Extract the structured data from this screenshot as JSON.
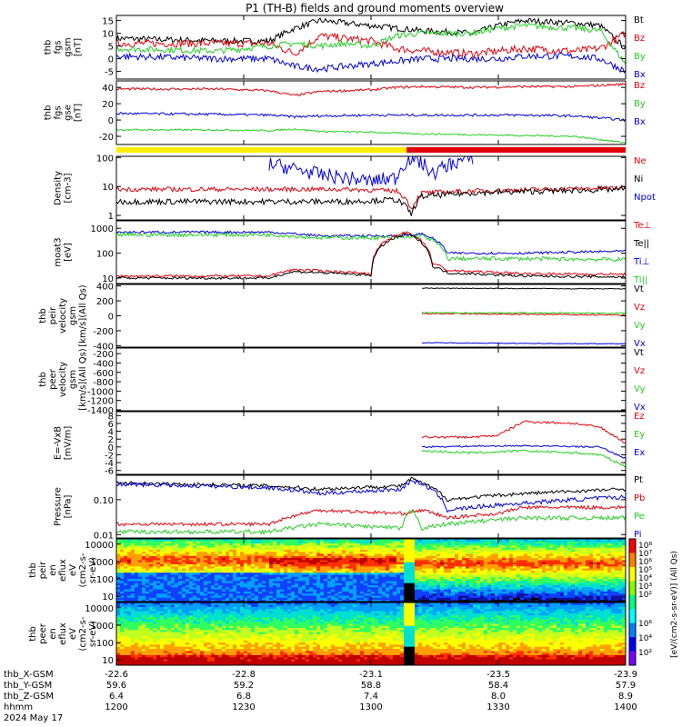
{
  "title": "P1 (TH-B) fields and ground moments overview",
  "colors": {
    "black": "#000000",
    "red": "#e8000b",
    "green": "#22d022",
    "blue": "#0000e0",
    "yellow": "#ffee00",
    "barred": "#e00000"
  },
  "chart_data": [
    {
      "type": "line",
      "id": "fgs",
      "ylabel_lines": [
        "thb",
        "fgs",
        "gsm",
        "[nT]"
      ],
      "ylim": [
        -8,
        17
      ],
      "ticks": [
        "15",
        "10",
        "5",
        "0",
        "-5"
      ],
      "tick_values": [
        15,
        10,
        5,
        0,
        -5
      ],
      "legend": [
        {
          "label": "Bt",
          "color": "black"
        },
        {
          "label": "Bz",
          "color": "red"
        },
        {
          "label": "By",
          "color": "green"
        },
        {
          "label": "Bx",
          "color": "blue"
        }
      ],
      "series": [
        {
          "name": "Bt",
          "color": "black",
          "t": [
            0,
            0.2,
            0.3,
            0.35,
            0.4,
            0.45,
            0.5,
            0.55,
            0.6,
            0.7,
            0.75,
            0.8,
            0.9,
            0.95,
            1
          ],
          "values": [
            8,
            7,
            7,
            12,
            15,
            14,
            13,
            12,
            11,
            10,
            13,
            15,
            14,
            13,
            4
          ],
          "noise": 1.2
        },
        {
          "name": "Bz",
          "color": "red",
          "t": [
            0,
            0.2,
            0.3,
            0.35,
            0.4,
            0.45,
            0.5,
            0.55,
            0.6,
            0.7,
            0.75,
            0.8,
            0.9,
            0.95,
            1
          ],
          "values": [
            6,
            6,
            6,
            2,
            9,
            8,
            7,
            4,
            3,
            2,
            3,
            4,
            3,
            4,
            10
          ],
          "noise": 1.5
        },
        {
          "name": "By",
          "color": "green",
          "t": [
            0,
            0.2,
            0.3,
            0.35,
            0.4,
            0.45,
            0.5,
            0.55,
            0.6,
            0.7,
            0.75,
            0.8,
            0.9,
            0.95,
            1
          ],
          "values": [
            4,
            3,
            5,
            6,
            5,
            6,
            5,
            9,
            10,
            10,
            12,
            13,
            12,
            11,
            -2
          ],
          "noise": 1.2
        },
        {
          "name": "Bx",
          "color": "blue",
          "t": [
            0,
            0.2,
            0.3,
            0.35,
            0.4,
            0.45,
            0.5,
            0.55,
            0.6,
            0.7,
            0.75,
            0.8,
            0.9,
            0.95,
            1
          ],
          "values": [
            1,
            0,
            0,
            -3,
            -4,
            -3,
            -2,
            -1,
            0,
            0,
            0,
            1,
            1,
            0,
            -5
          ],
          "noise": 1.3
        }
      ]
    },
    {
      "type": "line",
      "id": "fgs_gse",
      "ylabel_lines": [
        "thb",
        "fgs",
        "gse",
        "[nT]"
      ],
      "ylim": [
        -30,
        48
      ],
      "ticks": [
        "40",
        "20",
        "0",
        "-20"
      ],
      "tick_values": [
        40,
        20,
        0,
        -20
      ],
      "legend": [
        {
          "label": "Bz",
          "color": "red"
        },
        {
          "label": "By",
          "color": "green"
        },
        {
          "label": "Bx",
          "color": "blue"
        }
      ],
      "series": [
        {
          "name": "Bz",
          "color": "red",
          "t": [
            0,
            0.2,
            0.3,
            0.35,
            0.4,
            0.5,
            0.55,
            0.6,
            0.7,
            0.8,
            0.9,
            1
          ],
          "values": [
            38,
            38,
            36,
            30,
            35,
            37,
            40,
            41,
            40,
            41,
            41,
            44
          ],
          "noise": 1.5
        },
        {
          "name": "By",
          "color": "green",
          "t": [
            0,
            0.2,
            0.3,
            0.35,
            0.4,
            0.5,
            0.55,
            0.6,
            0.7,
            0.8,
            0.9,
            1
          ],
          "values": [
            -12,
            -12,
            -13,
            -11,
            -14,
            -15,
            -16,
            -17,
            -18,
            -19,
            -20,
            -28
          ],
          "noise": 1
        },
        {
          "name": "Bx",
          "color": "blue",
          "t": [
            0,
            0.2,
            0.3,
            0.35,
            0.4,
            0.5,
            0.55,
            0.6,
            0.7,
            0.8,
            0.9,
            1
          ],
          "values": [
            8,
            7,
            6,
            4,
            5,
            6,
            6,
            6,
            6,
            6,
            5,
            0
          ],
          "noise": 1.5
        }
      ]
    },
    {
      "type": "line",
      "id": "density",
      "ylabel_lines": [
        "Density",
        "[cm-3]"
      ],
      "log": true,
      "ylim": [
        0.7,
        110
      ],
      "ticks": [
        "100",
        "10",
        "1"
      ],
      "tick_values": [
        100,
        10,
        1
      ],
      "legend": [
        {
          "label": "Ne",
          "color": "red"
        },
        {
          "label": "Ni",
          "color": "black"
        },
        {
          "label": "Npot",
          "color": "blue"
        }
      ],
      "series": [
        {
          "name": "Ne",
          "color": "red",
          "t": [
            0,
            0.35,
            0.45,
            0.55,
            0.58,
            0.6,
            0.7,
            0.85,
            1
          ],
          "values": [
            8,
            8,
            8,
            7,
            1.5,
            6,
            7,
            8,
            9
          ],
          "noise": 0.08
        },
        {
          "name": "Ni",
          "color": "black",
          "t": [
            0,
            0.35,
            0.45,
            0.55,
            0.58,
            0.6,
            0.7,
            0.85,
            1
          ],
          "values": [
            3,
            3,
            3,
            3.5,
            1,
            4.5,
            6,
            7,
            8
          ],
          "noise": 0.1
        },
        {
          "name": "Npot",
          "color": "blue",
          "t": [
            0.3,
            0.35,
            0.4,
            0.45,
            0.5,
            0.55,
            0.58,
            0.62,
            0.7
          ],
          "values": [
            60,
            40,
            25,
            20,
            15,
            20,
            100,
            25,
            100
          ],
          "noise": 0.25
        }
      ]
    },
    {
      "type": "line",
      "id": "temp",
      "ylabel_lines": [
        "moat3",
        "[eV]"
      ],
      "log": true,
      "ylim": [
        6,
        2000
      ],
      "ticks": [
        "1000",
        "100",
        "10"
      ],
      "tick_values": [
        1000,
        100,
        10
      ],
      "legend": [
        {
          "label": "Te⊥",
          "color": "red"
        },
        {
          "label": "Te||",
          "color": "black"
        },
        {
          "label": "Ti⊥",
          "color": "blue"
        },
        {
          "label": "Ti||",
          "color": "green"
        }
      ],
      "series": [
        {
          "name": "Ti⊥",
          "color": "blue",
          "t": [
            0,
            0.3,
            0.4,
            0.57,
            0.6,
            0.65,
            0.8,
            1
          ],
          "values": [
            700,
            700,
            500,
            500,
            600,
            100,
            100,
            120
          ],
          "noise": 0.05
        },
        {
          "name": "Ti||",
          "color": "green",
          "t": [
            0,
            0.3,
            0.4,
            0.57,
            0.6,
            0.65,
            0.8,
            1
          ],
          "values": [
            550,
            550,
            420,
            420,
            500,
            60,
            60,
            55
          ],
          "noise": 0.08
        },
        {
          "name": "Te⊥",
          "color": "red",
          "t": [
            0,
            0.3,
            0.35,
            0.5,
            0.57,
            0.62,
            0.65,
            0.8,
            1
          ],
          "values": [
            12,
            12,
            22,
            15,
            700,
            40,
            20,
            15,
            14
          ],
          "noise": 0.05
        },
        {
          "name": "Te||",
          "color": "black",
          "t": [
            0,
            0.3,
            0.35,
            0.5,
            0.57,
            0.62,
            0.65,
            0.8,
            1
          ],
          "values": [
            10,
            10,
            18,
            13,
            600,
            30,
            16,
            12,
            11
          ],
          "noise": 0.05
        }
      ]
    },
    {
      "type": "line",
      "id": "peir_v",
      "ylabel_lines": [
        "thb",
        "peir",
        "velocity",
        "gsm",
        "[km/s](All Qs)"
      ],
      "ylim": [
        -420,
        420
      ],
      "ticks": [
        "400",
        "200",
        "0",
        "-200",
        "-400"
      ],
      "tick_values": [
        400,
        200,
        0,
        -200,
        -400
      ],
      "legend": [
        {
          "label": "Vt",
          "color": "black"
        },
        {
          "label": "Vz",
          "color": "red"
        },
        {
          "label": "Vy",
          "color": "green"
        },
        {
          "label": "Vx",
          "color": "blue"
        }
      ],
      "series": [
        {
          "name": "Vt",
          "color": "black",
          "t": [
            0.6,
            0.8,
            1
          ],
          "values": [
            370,
            365,
            360
          ],
          "noise": 5
        },
        {
          "name": "Vz",
          "color": "red",
          "t": [
            0.6,
            0.8,
            1
          ],
          "values": [
            30,
            20,
            10
          ],
          "noise": 10
        },
        {
          "name": "Vy",
          "color": "green",
          "t": [
            0.6,
            0.8,
            1
          ],
          "values": [
            40,
            40,
            35
          ],
          "noise": 8
        },
        {
          "name": "Vx",
          "color": "blue",
          "t": [
            0.6,
            0.8,
            1
          ],
          "values": [
            -360,
            -370,
            -375
          ],
          "noise": 5
        }
      ]
    },
    {
      "type": "line",
      "id": "peer_v",
      "ylabel_lines": [
        "thb",
        "peer",
        "velocity",
        "gsm",
        "[km/s](All Qs)"
      ],
      "ylim": [
        -1420,
        -80
      ],
      "ticks": [
        "-200",
        "-400",
        "-600",
        "-800",
        "-1000",
        "-1200",
        "-1400"
      ],
      "tick_values": [
        -200,
        -400,
        -600,
        -800,
        -1000,
        -1200,
        -1400
      ],
      "legend": [
        {
          "label": "Vt",
          "color": "black"
        },
        {
          "label": "Vz",
          "color": "red"
        },
        {
          "label": "Vy",
          "color": "green"
        },
        {
          "label": "Vx",
          "color": "blue"
        }
      ],
      "series": []
    },
    {
      "type": "line",
      "id": "efield",
      "ylabel_lines": [
        "E=-VxB",
        "[mV/m]"
      ],
      "ylim": [
        -7,
        9
      ],
      "ticks": [
        "8",
        "6",
        "4",
        "2",
        "0",
        "-2",
        "-4",
        "-6"
      ],
      "tick_values": [
        8,
        6,
        4,
        2,
        0,
        -2,
        -4,
        -6
      ],
      "legend": [
        {
          "label": "Ez",
          "color": "red"
        },
        {
          "label": "Ey",
          "color": "green"
        },
        {
          "label": "Ex",
          "color": "blue"
        }
      ],
      "series": [
        {
          "name": "Ez",
          "color": "red",
          "t": [
            0.6,
            0.7,
            0.75,
            0.8,
            0.9,
            0.95,
            1
          ],
          "values": [
            2.5,
            2.5,
            3,
            6.5,
            6,
            5,
            1
          ],
          "noise": 0.3
        },
        {
          "name": "Ey",
          "color": "green",
          "t": [
            0.6,
            0.7,
            0.8,
            0.9,
            0.95,
            1
          ],
          "values": [
            -1,
            -1.5,
            -1,
            -1.5,
            -2,
            -5
          ],
          "noise": 0.3
        },
        {
          "name": "Ex",
          "color": "blue",
          "t": [
            0.6,
            0.7,
            0.8,
            0.9,
            0.95,
            1
          ],
          "values": [
            0,
            0.2,
            0.3,
            0.1,
            0,
            -3
          ],
          "noise": 0.2
        }
      ]
    },
    {
      "type": "line",
      "id": "pressure",
      "ylabel_lines": [
        "Pressure",
        "[nPa]"
      ],
      "log": true,
      "ylim": [
        0.008,
        0.5
      ],
      "ticks": [
        "0.10",
        "0.01"
      ],
      "tick_values": [
        0.1,
        0.01
      ],
      "legend": [
        {
          "label": "Pt",
          "color": "black"
        },
        {
          "label": "Pb",
          "color": "red"
        },
        {
          "label": "Pe",
          "color": "green"
        },
        {
          "label": "Pi",
          "color": "blue"
        }
      ],
      "series": [
        {
          "name": "Pt",
          "color": "black",
          "t": [
            0,
            0.3,
            0.4,
            0.56,
            0.58,
            0.6,
            0.65,
            0.8,
            1
          ],
          "values": [
            0.3,
            0.25,
            0.2,
            0.25,
            0.4,
            0.3,
            0.1,
            0.15,
            0.2
          ],
          "noise": 0.05
        },
        {
          "name": "Pi",
          "color": "blue",
          "t": [
            0,
            0.3,
            0.4,
            0.56,
            0.58,
            0.6,
            0.65,
            0.8,
            1
          ],
          "values": [
            0.28,
            0.22,
            0.15,
            0.2,
            0.35,
            0.28,
            0.05,
            0.08,
            0.12
          ],
          "noise": 0.06
        },
        {
          "name": "Pb",
          "color": "red",
          "t": [
            0,
            0.3,
            0.4,
            0.56,
            0.6,
            0.65,
            0.75,
            0.8,
            1
          ],
          "values": [
            0.02,
            0.02,
            0.05,
            0.04,
            0.05,
            0.03,
            0.04,
            0.06,
            0.06
          ],
          "noise": 0.05
        },
        {
          "name": "Pe",
          "color": "green",
          "t": [
            0,
            0.3,
            0.4,
            0.56,
            0.58,
            0.6,
            0.65,
            0.8,
            1
          ],
          "values": [
            0.012,
            0.012,
            0.02,
            0.015,
            0.05,
            0.015,
            0.02,
            0.03,
            0.03
          ],
          "noise": 0.06
        }
      ]
    },
    {
      "type": "heatmap",
      "id": "peir_en",
      "ylabel_lines": [
        "thb",
        "peir",
        "en",
        "eflux",
        "eV",
        "(cm2-s-",
        "sr-eV)"
      ],
      "ticks": [
        "10000",
        "1000",
        "100",
        "10"
      ],
      "tick_values": [
        10000,
        1000,
        100,
        10
      ],
      "ylim": [
        5,
        20000
      ]
    },
    {
      "type": "heatmap",
      "id": "peer_en",
      "ylabel_lines": [
        "thb",
        "peer",
        "en",
        "eflux",
        "eV",
        "(cm2-s-",
        "sr-eV)"
      ],
      "ticks": [
        "10000",
        "1000",
        "100",
        "10"
      ],
      "tick_values": [
        10000,
        1000,
        100,
        10
      ],
      "ylim": [
        5,
        20000
      ]
    }
  ],
  "colorbar": {
    "label": "[eV/(cm2-s-sr-eV)] (All Qs)",
    "ticks": [
      "10⁸",
      "10⁷",
      "10⁶",
      "10⁵",
      "10⁴",
      "10³",
      "10²"
    ]
  },
  "colorbar2": {
    "ticks": [
      "10⁶",
      "10⁴",
      "10²"
    ]
  },
  "state_bar": {
    "colors": [
      "yellow",
      "barred"
    ],
    "split": 0.57
  },
  "xaxis": {
    "row_labels": [
      "thb_X-GSM",
      "thb_Y-GSM",
      "thb_Z-GSM",
      "hhmm",
      "2024 May 17"
    ],
    "ticks": [
      {
        "t": 0,
        "values": [
          "-22.6",
          "59.6",
          "6.4",
          "1200"
        ]
      },
      {
        "t": 0.25,
        "values": [
          "-22.8",
          "59.2",
          "6.8",
          "1230"
        ]
      },
      {
        "t": 0.5,
        "values": [
          "-23.1",
          "58.8",
          "7.4",
          "1300"
        ]
      },
      {
        "t": 0.75,
        "values": [
          "-23.5",
          "58.4",
          "8.0",
          "1330"
        ]
      },
      {
        "t": 1,
        "values": [
          "-23.9",
          "57.9",
          "8.9",
          "1400"
        ]
      }
    ]
  }
}
